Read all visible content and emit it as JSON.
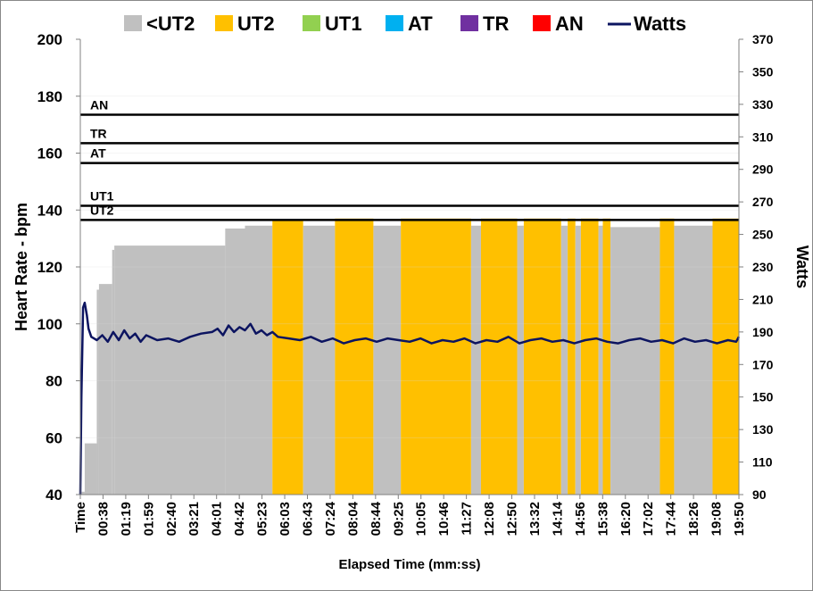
{
  "chart_data": {
    "type": "area",
    "xlabel": "Elapsed Time (mm:ss)",
    "ylabel_left": "Heart Rate - bpm",
    "ylabel_right": "Watts",
    "ylim_left": [
      40,
      200
    ],
    "yticks_left": [
      40,
      60,
      80,
      100,
      120,
      140,
      160,
      180,
      200
    ],
    "ylim_right": [
      90,
      370
    ],
    "yticks_right": [
      90,
      110,
      130,
      150,
      170,
      190,
      210,
      230,
      250,
      270,
      290,
      310,
      330,
      350,
      370
    ],
    "x_range_seconds": [
      0,
      1200
    ],
    "x_tick_labels": [
      "Time",
      "00:38",
      "01:19",
      "01:59",
      "02:40",
      "03:21",
      "04:01",
      "04:42",
      "05:23",
      "06:03",
      "06:43",
      "07:24",
      "08:04",
      "08:44",
      "09:25",
      "10:05",
      "10:46",
      "11:27",
      "12:08",
      "12:50",
      "13:32",
      "14:14",
      "14:56",
      "15:38",
      "16:20",
      "17:02",
      "17:44",
      "18:26",
      "19:08",
      "19:50"
    ],
    "legend": [
      {
        "name": "<UT2",
        "color": "#c0c0c0",
        "kind": "box"
      },
      {
        "name": "UT2",
        "color": "#ffc000",
        "kind": "box"
      },
      {
        "name": "UT1",
        "color": "#92d050",
        "kind": "box"
      },
      {
        "name": "AT",
        "color": "#00b0f0",
        "kind": "box"
      },
      {
        "name": "TR",
        "color": "#7030a0",
        "kind": "box"
      },
      {
        "name": "AN",
        "color": "#ff0000",
        "kind": "box"
      },
      {
        "name": "Watts",
        "color": "#0c1460",
        "kind": "line"
      }
    ],
    "zone_thresholds_bpm": [
      {
        "label": "UT2",
        "value": 136.5
      },
      {
        "label": "UT1",
        "value": 141.5
      },
      {
        "label": "AT",
        "value": 156.5
      },
      {
        "label": "TR",
        "value": 163.5
      },
      {
        "label": "AN",
        "value": 173.5
      }
    ],
    "heart_rate_segments": [
      {
        "start": 0,
        "end": 2,
        "bpm": 40,
        "zone": "<UT2"
      },
      {
        "start": 2,
        "end": 8,
        "bpm": 41,
        "zone": "<UT2"
      },
      {
        "start": 8,
        "end": 30,
        "bpm": 58,
        "zone": "<UT2"
      },
      {
        "start": 30,
        "end": 34,
        "bpm": 112,
        "zone": "<UT2"
      },
      {
        "start": 34,
        "end": 58,
        "bpm": 114,
        "zone": "<UT2"
      },
      {
        "start": 58,
        "end": 62,
        "bpm": 126,
        "zone": "<UT2"
      },
      {
        "start": 62,
        "end": 264,
        "bpm": 127.5,
        "zone": "<UT2"
      },
      {
        "start": 264,
        "end": 300,
        "bpm": 133.5,
        "zone": "<UT2"
      },
      {
        "start": 300,
        "end": 350,
        "bpm": 134.5,
        "zone": "<UT2"
      },
      {
        "start": 350,
        "end": 406,
        "bpm": 136.5,
        "zone": "UT2"
      },
      {
        "start": 406,
        "end": 464,
        "bpm": 134.5,
        "zone": "<UT2"
      },
      {
        "start": 464,
        "end": 534,
        "bpm": 137,
        "zone": "UT2"
      },
      {
        "start": 534,
        "end": 584,
        "bpm": 134.5,
        "zone": "<UT2"
      },
      {
        "start": 584,
        "end": 712,
        "bpm": 137,
        "zone": "UT2"
      },
      {
        "start": 712,
        "end": 730,
        "bpm": 134.5,
        "zone": "<UT2"
      },
      {
        "start": 730,
        "end": 796,
        "bpm": 137,
        "zone": "UT2"
      },
      {
        "start": 796,
        "end": 808,
        "bpm": 134.5,
        "zone": "<UT2"
      },
      {
        "start": 808,
        "end": 876,
        "bpm": 137,
        "zone": "UT2"
      },
      {
        "start": 876,
        "end": 888,
        "bpm": 134.5,
        "zone": "<UT2"
      },
      {
        "start": 888,
        "end": 902,
        "bpm": 137,
        "zone": "UT2"
      },
      {
        "start": 902,
        "end": 912,
        "bpm": 134.5,
        "zone": "<UT2"
      },
      {
        "start": 912,
        "end": 944,
        "bpm": 137,
        "zone": "UT2"
      },
      {
        "start": 944,
        "end": 952,
        "bpm": 134.5,
        "zone": "<UT2"
      },
      {
        "start": 952,
        "end": 966,
        "bpm": 137,
        "zone": "UT2"
      },
      {
        "start": 966,
        "end": 1056,
        "bpm": 134,
        "zone": "<UT2"
      },
      {
        "start": 1056,
        "end": 1082,
        "bpm": 137,
        "zone": "UT2"
      },
      {
        "start": 1082,
        "end": 1152,
        "bpm": 134.5,
        "zone": "<UT2"
      },
      {
        "start": 1152,
        "end": 1200,
        "bpm": 137,
        "zone": "UT2"
      }
    ],
    "watts_series": {
      "name": "Watts",
      "t": [
        0,
        2,
        5,
        8,
        12,
        15,
        20,
        30,
        40,
        50,
        60,
        70,
        80,
        90,
        100,
        110,
        120,
        140,
        160,
        180,
        200,
        220,
        240,
        250,
        260,
        270,
        280,
        290,
        300,
        310,
        320,
        330,
        340,
        350,
        360,
        380,
        400,
        420,
        440,
        460,
        480,
        500,
        520,
        540,
        560,
        580,
        600,
        620,
        640,
        660,
        680,
        700,
        720,
        740,
        760,
        780,
        800,
        820,
        840,
        860,
        880,
        900,
        920,
        940,
        960,
        980,
        1000,
        1020,
        1040,
        1060,
        1080,
        1100,
        1120,
        1140,
        1160,
        1180,
        1195,
        1200
      ],
      "watts": [
        90,
        150,
        205,
        208,
        200,
        192,
        187,
        185,
        188,
        184,
        190,
        185,
        191,
        186,
        189,
        184,
        188,
        185,
        186,
        184,
        187,
        189,
        190,
        192,
        188,
        194,
        190,
        193,
        191,
        195,
        189,
        191,
        188,
        190,
        187,
        186,
        185,
        187,
        184,
        186,
        183,
        185,
        186,
        184,
        186,
        185,
        184,
        186,
        183,
        185,
        184,
        186,
        183,
        185,
        184,
        187,
        183,
        185,
        186,
        184,
        185,
        183,
        185,
        186,
        184,
        183,
        185,
        186,
        184,
        185,
        183,
        186,
        184,
        185,
        183,
        185,
        184,
        187
      ]
    }
  }
}
